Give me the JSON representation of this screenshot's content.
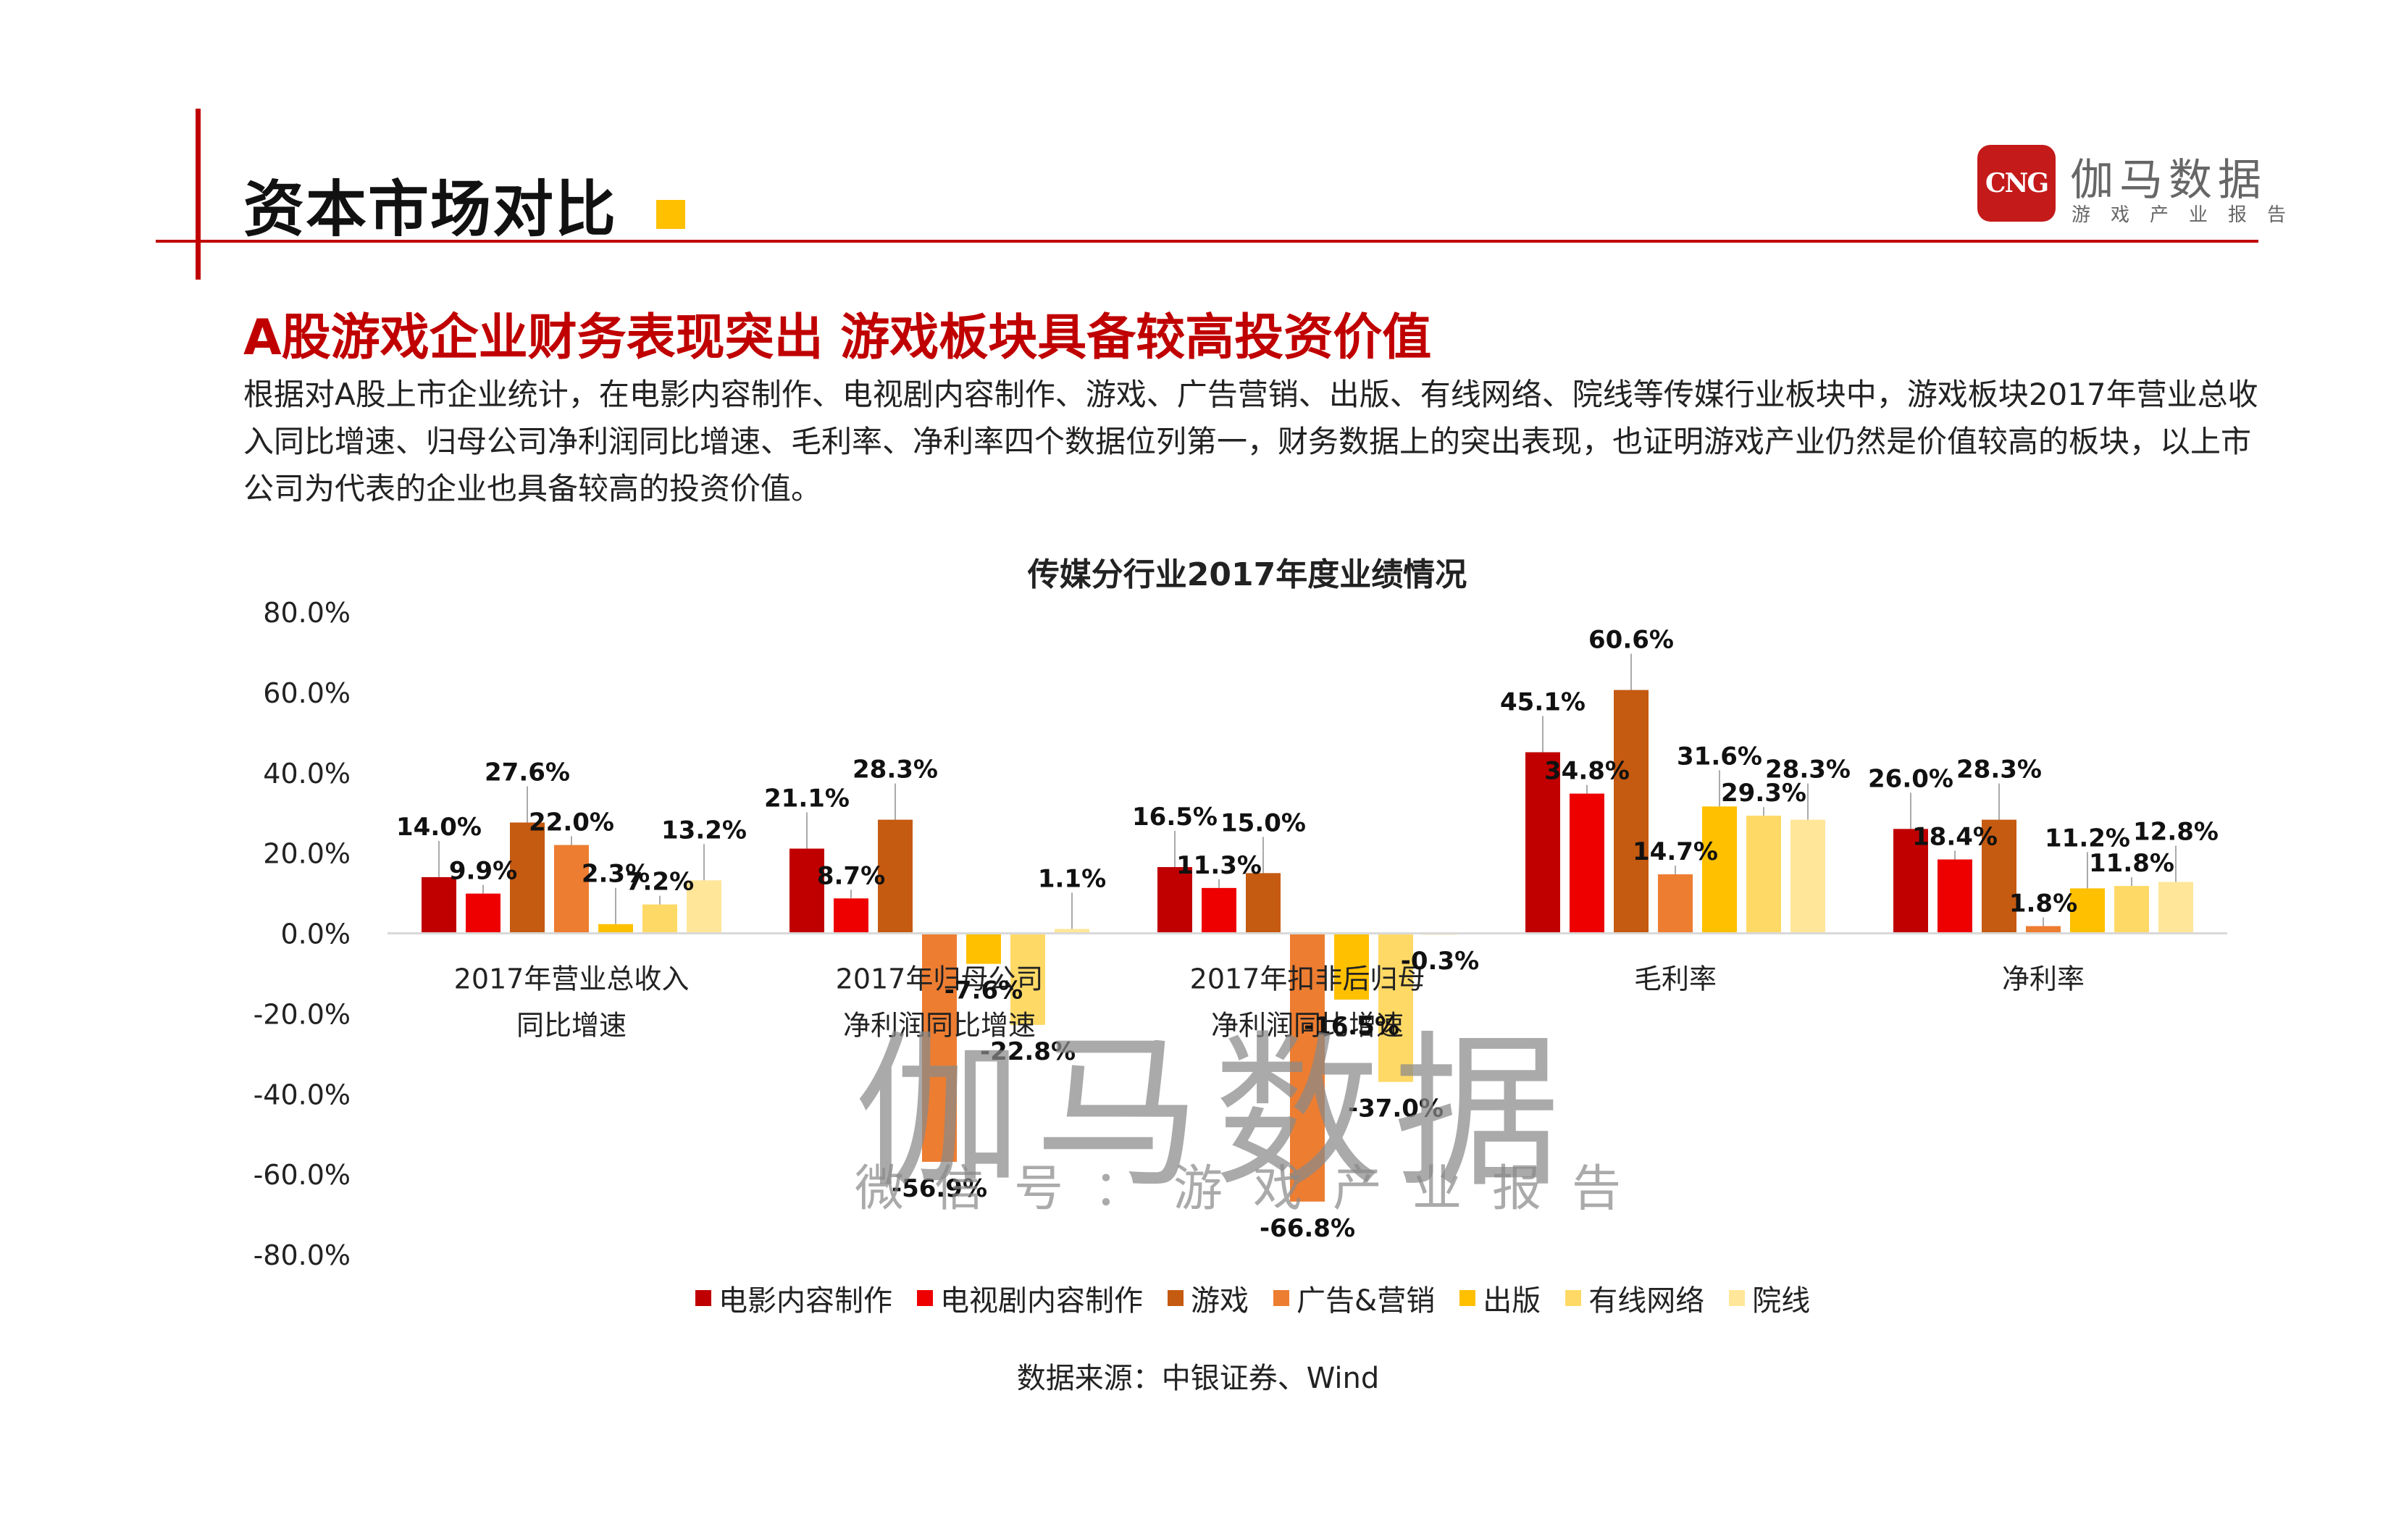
{
  "header": {
    "page_title": "资本市场对比",
    "brand": {
      "logo_text": "CNG",
      "name": "伽马数据",
      "subtitle": "游戏产业报告",
      "color": "#c41a1a"
    }
  },
  "headline": "A股游戏企业财务表现突出  游戏板块具备较高投资价值",
  "body_text": "根据对A股上市企业统计，在电影内容制作、电视剧内容制作、游戏、广告营销、出版、有线网络、院线等传媒行业板块中，游戏板块2017年营业总收入同比增速、归母公司净利润同比增速、毛利率、净利率四个数据位列第一，财务数据上的突出表现，也证明游戏产业仍然是价值较高的板块，以上市公司为代表的企业也具备较高的投资价值。",
  "chart_data": {
    "type": "bar",
    "title": "传媒分行业2017年度业绩情况",
    "categories": [
      [
        "2017年营业总收入",
        "同比增速"
      ],
      [
        "2017年归母公司",
        "净利润同比增速"
      ],
      [
        "2017年扣非后归母",
        "净利润同比增速"
      ],
      [
        "毛利率"
      ],
      [
        "净利率"
      ]
    ],
    "y_ticks": [
      "80.0%",
      "60.0%",
      "40.0%",
      "20.0%",
      "0.0%",
      "-20.0%",
      "-40.0%",
      "-60.0%",
      "-80.0%"
    ],
    "ylim": [
      -80,
      80
    ],
    "value_unit": "%",
    "series": [
      {
        "name": "电影内容制作",
        "color": "#c00000",
        "values": [
          14.0,
          21.1,
          16.5,
          45.1,
          26.0
        ]
      },
      {
        "name": "电视剧内容制作",
        "color": "#ee0000",
        "values": [
          9.9,
          8.7,
          11.3,
          34.8,
          18.4
        ]
      },
      {
        "name": "游戏",
        "color": "#c55a11",
        "values": [
          27.6,
          28.3,
          15.0,
          60.6,
          28.3
        ]
      },
      {
        "name": "广告&营销",
        "color": "#ed7d31",
        "values": [
          22.0,
          -56.9,
          -66.8,
          14.7,
          1.8
        ]
      },
      {
        "name": "出版",
        "color": "#ffc000",
        "values": [
          2.3,
          -7.6,
          -16.5,
          31.6,
          11.2
        ]
      },
      {
        "name": "有线网络",
        "color": "#ffd966",
        "values": [
          7.2,
          -22.8,
          -37.0,
          29.3,
          11.8
        ]
      },
      {
        "name": "院线",
        "color": "#ffe699",
        "values": [
          13.2,
          1.1,
          -0.3,
          28.3,
          12.8
        ]
      }
    ],
    "data_labels": [
      [
        "14.0%",
        "21.1%",
        "16.5%",
        "45.1%",
        "26.0%"
      ],
      [
        "9.9%",
        "8.7%",
        "11.3%",
        "34.8%",
        "18.4%"
      ],
      [
        "27.6%",
        "28.3%",
        "15.0%",
        "60.6%",
        "28.3%"
      ],
      [
        "22.0%",
        "-56.9%",
        "-66.8%",
        "14.7%",
        "1.8%"
      ],
      [
        "2.3%",
        "-7.6%",
        "-16.5%",
        "31.6%",
        "11.2%"
      ],
      [
        "7.2%",
        "-22.8%",
        "-37.0%",
        "29.3%",
        "11.8%"
      ],
      [
        "13.2%",
        "1.1%",
        "-0.3%",
        "28.3%",
        "12.8%"
      ]
    ],
    "legend_position": "bottom",
    "grid": false
  },
  "source": "数据来源：中银证券、Wind",
  "watermark": {
    "main": "伽马数据",
    "sub": "微信号：游戏产业报告"
  }
}
